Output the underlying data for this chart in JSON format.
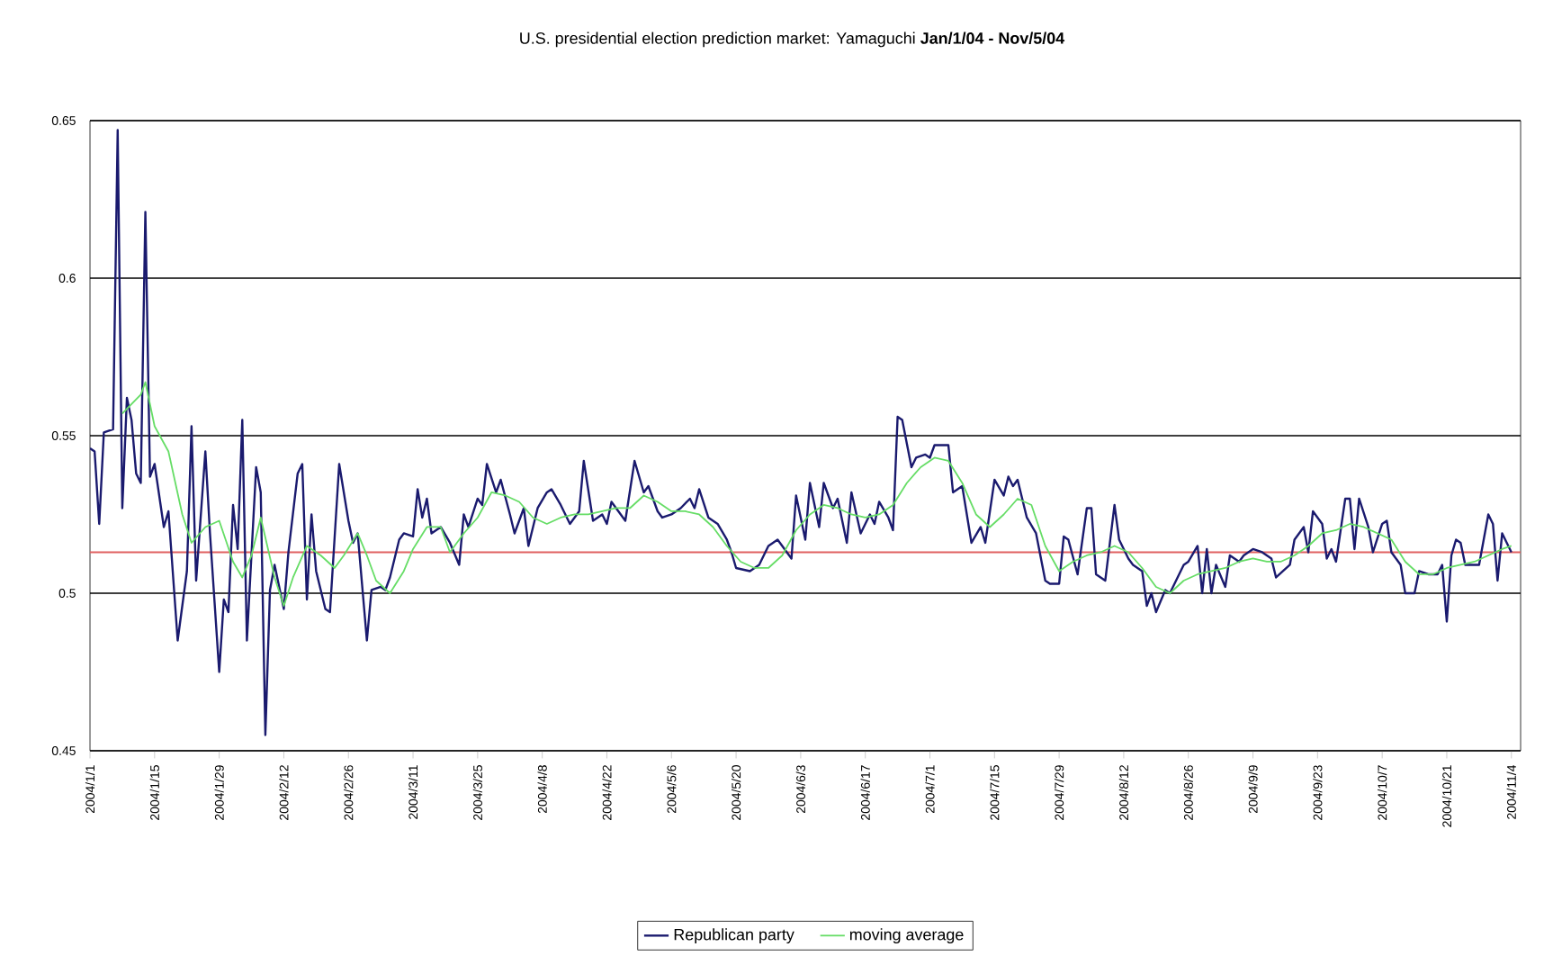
{
  "chart_data": {
    "type": "line",
    "title": "U.S. presidential election prediction market: Yamaguchi   **Jan/1/04 - Nov/5/04**",
    "xlim": [
      "2004-01-01",
      "2004-11-06"
    ],
    "xticks": [
      {
        "value": "2004-01-01",
        "label": "2004/1/1"
      },
      {
        "value": "2004-01-15",
        "label": "2004/1/15"
      },
      {
        "value": "2004-01-29",
        "label": "2004/1/29"
      },
      {
        "value": "2004-02-12",
        "label": "2004/2/12"
      },
      {
        "value": "2004-02-26",
        "label": "2004/2/26"
      },
      {
        "value": "2004-03-11",
        "label": "2004/3/11"
      },
      {
        "value": "2004-03-25",
        "label": "2004/3/25"
      },
      {
        "value": "2004-04-08",
        "label": "2004/4/8"
      },
      {
        "value": "2004-04-22",
        "label": "2004/4/22"
      },
      {
        "value": "2004-05-06",
        "label": "2004/5/6"
      },
      {
        "value": "2004-05-20",
        "label": "2004/5/20"
      },
      {
        "value": "2004-06-03",
        "label": "2004/6/3"
      },
      {
        "value": "2004-06-17",
        "label": "2004/6/17"
      },
      {
        "value": "2004-07-01",
        "label": "2004/7/1"
      },
      {
        "value": "2004-07-15",
        "label": "2004/7/15"
      },
      {
        "value": "2004-07-29",
        "label": "2004/7/29"
      },
      {
        "value": "2004-08-12",
        "label": "2004/8/12"
      },
      {
        "value": "2004-08-26",
        "label": "2004/8/26"
      },
      {
        "value": "2004-09-09",
        "label": "2004/9/9"
      },
      {
        "value": "2004-09-23",
        "label": "2004/9/23"
      },
      {
        "value": "2004-10-07",
        "label": "2004/10/7"
      },
      {
        "value": "2004-10-21",
        "label": "2004/10/21"
      },
      {
        "value": "2004-11-04",
        "label": "2004/11/4"
      }
    ],
    "ylim": [
      0.45,
      0.65
    ],
    "yticks": [
      0.45,
      0.5,
      0.55,
      0.6,
      0.65
    ],
    "grid": "y",
    "legend": "bottom",
    "ref_lines": [
      {
        "axis": "y",
        "value": 0.513,
        "color": "#e06060"
      }
    ],
    "series": [
      {
        "name": "Republican party",
        "color": "#1a1a6e",
        "x": [
          "2004-01-01",
          "2004-01-02",
          "2004-01-03",
          "2004-01-04",
          "2004-01-06",
          "2004-01-07",
          "2004-01-08",
          "2004-01-09",
          "2004-01-10",
          "2004-01-11",
          "2004-01-12",
          "2004-01-13",
          "2004-01-14",
          "2004-01-15",
          "2004-01-17",
          "2004-01-18",
          "2004-01-20",
          "2004-01-22",
          "2004-01-23",
          "2004-01-24",
          "2004-01-26",
          "2004-01-27",
          "2004-01-29",
          "2004-01-30",
          "2004-01-31",
          "2004-02-01",
          "2004-02-02",
          "2004-02-03",
          "2004-02-04",
          "2004-02-06",
          "2004-02-07",
          "2004-02-08",
          "2004-02-09",
          "2004-02-10",
          "2004-02-12",
          "2004-02-13",
          "2004-02-15",
          "2004-02-16",
          "2004-02-17",
          "2004-02-18",
          "2004-02-19",
          "2004-02-21",
          "2004-02-22",
          "2004-02-24",
          "2004-02-26",
          "2004-02-27",
          "2004-02-28",
          "2004-03-01",
          "2004-03-02",
          "2004-03-04",
          "2004-03-05",
          "2004-03-06",
          "2004-03-08",
          "2004-03-09",
          "2004-03-11",
          "2004-03-12",
          "2004-03-13",
          "2004-03-14",
          "2004-03-15",
          "2004-03-17",
          "2004-03-19",
          "2004-03-21",
          "2004-03-22",
          "2004-03-23",
          "2004-03-25",
          "2004-03-26",
          "2004-03-27",
          "2004-03-29",
          "2004-03-30",
          "2004-04-01",
          "2004-04-02",
          "2004-04-04",
          "2004-04-05",
          "2004-04-07",
          "2004-04-09",
          "2004-04-10",
          "2004-04-12",
          "2004-04-14",
          "2004-04-16",
          "2004-04-17",
          "2004-04-19",
          "2004-04-21",
          "2004-04-22",
          "2004-04-23",
          "2004-04-26",
          "2004-04-28",
          "2004-04-30",
          "2004-05-01",
          "2004-05-03",
          "2004-05-04",
          "2004-05-06",
          "2004-05-08",
          "2004-05-10",
          "2004-05-11",
          "2004-05-12",
          "2004-05-14",
          "2004-05-16",
          "2004-05-18",
          "2004-05-19",
          "2004-05-20",
          "2004-05-23",
          "2004-05-25",
          "2004-05-27",
          "2004-05-29",
          "2004-06-01",
          "2004-06-02",
          "2004-06-04",
          "2004-06-05",
          "2004-06-07",
          "2004-06-08",
          "2004-06-10",
          "2004-06-11",
          "2004-06-13",
          "2004-06-14",
          "2004-06-16",
          "2004-06-18",
          "2004-06-19",
          "2004-06-20",
          "2004-06-22",
          "2004-06-23",
          "2004-06-24",
          "2004-06-25",
          "2004-06-27",
          "2004-06-28",
          "2004-06-30",
          "2004-07-01",
          "2004-07-02",
          "2004-07-05",
          "2004-07-06",
          "2004-07-08",
          "2004-07-10",
          "2004-07-12",
          "2004-07-13",
          "2004-07-15",
          "2004-07-17",
          "2004-07-18",
          "2004-07-19",
          "2004-07-20",
          "2004-07-22",
          "2004-07-24",
          "2004-07-26",
          "2004-07-27",
          "2004-07-29",
          "2004-07-30",
          "2004-07-31",
          "2004-08-02",
          "2004-08-04",
          "2004-08-05",
          "2004-08-06",
          "2004-08-08",
          "2004-08-10",
          "2004-08-11",
          "2004-08-13",
          "2004-08-14",
          "2004-08-16",
          "2004-08-17",
          "2004-08-18",
          "2004-08-19",
          "2004-08-21",
          "2004-08-22",
          "2004-08-25",
          "2004-08-26",
          "2004-08-28",
          "2004-08-29",
          "2004-08-30",
          "2004-08-31",
          "2004-09-01",
          "2004-09-03",
          "2004-09-04",
          "2004-09-06",
          "2004-09-07",
          "2004-09-09",
          "2004-09-11",
          "2004-09-13",
          "2004-09-14",
          "2004-09-17",
          "2004-09-18",
          "2004-09-20",
          "2004-09-21",
          "2004-09-22",
          "2004-09-24",
          "2004-09-25",
          "2004-09-26",
          "2004-09-27",
          "2004-09-29",
          "2004-09-30",
          "2004-10-01",
          "2004-10-02",
          "2004-10-04",
          "2004-10-05",
          "2004-10-07",
          "2004-10-08",
          "2004-10-09",
          "2004-10-11",
          "2004-10-12",
          "2004-10-14",
          "2004-10-15",
          "2004-10-17",
          "2004-10-19",
          "2004-10-20",
          "2004-10-21",
          "2004-10-22",
          "2004-10-23",
          "2004-10-24",
          "2004-10-25",
          "2004-10-27",
          "2004-10-28",
          "2004-10-30",
          "2004-10-31",
          "2004-11-01",
          "2004-11-02",
          "2004-11-03",
          "2004-11-04"
        ],
        "values": [
          0.546,
          0.545,
          0.522,
          0.551,
          0.552,
          0.647,
          0.527,
          0.562,
          0.555,
          0.538,
          0.535,
          0.621,
          0.537,
          0.541,
          0.521,
          0.526,
          0.485,
          0.507,
          0.553,
          0.504,
          0.545,
          0.519,
          0.475,
          0.498,
          0.494,
          0.528,
          0.514,
          0.555,
          0.485,
          0.54,
          0.532,
          0.455,
          0.501,
          0.509,
          0.495,
          0.513,
          0.538,
          0.541,
          0.498,
          0.525,
          0.507,
          0.495,
          0.494,
          0.541,
          0.523,
          0.516,
          0.519,
          0.485,
          0.501,
          0.502,
          0.501,
          0.505,
          0.517,
          0.519,
          0.518,
          0.533,
          0.524,
          0.53,
          0.519,
          0.521,
          0.516,
          0.509,
          0.525,
          0.521,
          0.53,
          0.528,
          0.541,
          0.532,
          0.536,
          0.525,
          0.519,
          0.527,
          0.515,
          0.527,
          0.532,
          0.533,
          0.528,
          0.522,
          0.526,
          0.542,
          0.523,
          0.525,
          0.522,
          0.529,
          0.523,
          0.542,
          0.532,
          0.534,
          0.526,
          0.524,
          0.525,
          0.527,
          0.53,
          0.527,
          0.533,
          0.524,
          0.522,
          0.517,
          0.513,
          0.508,
          0.507,
          0.509,
          0.515,
          0.517,
          0.511,
          0.531,
          0.517,
          0.535,
          0.521,
          0.535,
          0.527,
          0.53,
          0.516,
          0.532,
          0.519,
          0.525,
          0.522,
          0.529,
          0.524,
          0.52,
          0.556,
          0.555,
          0.54,
          0.543,
          0.544,
          0.543,
          0.547,
          0.547,
          0.532,
          0.534,
          0.516,
          0.521,
          0.516,
          0.536,
          0.531,
          0.537,
          0.534,
          0.536,
          0.524,
          0.519,
          0.504,
          0.503,
          0.503,
          0.518,
          0.517,
          0.506,
          0.527,
          0.527,
          0.506,
          0.504,
          0.528,
          0.517,
          0.511,
          0.509,
          0.507,
          0.496,
          0.5,
          0.494,
          0.501,
          0.5,
          0.509,
          0.51,
          0.515,
          0.5,
          0.514,
          0.5,
          0.509,
          0.502,
          0.512,
          0.51,
          0.512,
          0.514,
          0.513,
          0.511,
          0.505,
          0.509,
          0.517,
          0.521,
          0.513,
          0.526,
          0.522,
          0.511,
          0.514,
          0.51,
          0.53,
          0.53,
          0.514,
          0.53,
          0.521,
          0.513,
          0.522,
          0.523,
          0.513,
          0.509,
          0.5,
          0.5,
          0.507,
          0.506,
          0.506,
          0.509,
          0.491,
          0.512,
          0.517,
          0.516,
          0.509,
          0.509,
          0.509,
          0.525,
          0.522,
          0.504,
          0.519,
          0.516,
          0.513
        ]
      },
      {
        "name": "moving average",
        "color": "#66dd66",
        "x": [
          "2004-01-08",
          "2004-01-12",
          "2004-01-13",
          "2004-01-15",
          "2004-01-18",
          "2004-01-21",
          "2004-01-23",
          "2004-01-26",
          "2004-01-29",
          "2004-02-01",
          "2004-02-03",
          "2004-02-05",
          "2004-02-07",
          "2004-02-10",
          "2004-02-12",
          "2004-02-14",
          "2004-02-17",
          "2004-02-20",
          "2004-02-23",
          "2004-02-25",
          "2004-02-28",
          "2004-03-01",
          "2004-03-03",
          "2004-03-06",
          "2004-03-09",
          "2004-03-11",
          "2004-03-14",
          "2004-03-17",
          "2004-03-19",
          "2004-03-22",
          "2004-03-25",
          "2004-03-28",
          "2004-03-31",
          "2004-04-03",
          "2004-04-06",
          "2004-04-09",
          "2004-04-12",
          "2004-04-15",
          "2004-04-18",
          "2004-04-21",
          "2004-04-24",
          "2004-04-27",
          "2004-04-30",
          "2004-05-03",
          "2004-05-06",
          "2004-05-09",
          "2004-05-12",
          "2004-05-15",
          "2004-05-18",
          "2004-05-21",
          "2004-05-24",
          "2004-05-27",
          "2004-05-30",
          "2004-06-02",
          "2004-06-05",
          "2004-06-08",
          "2004-06-11",
          "2004-06-14",
          "2004-06-17",
          "2004-06-20",
          "2004-06-23",
          "2004-06-26",
          "2004-06-29",
          "2004-07-02",
          "2004-07-05",
          "2004-07-08",
          "2004-07-11",
          "2004-07-14",
          "2004-07-17",
          "2004-07-20",
          "2004-07-23",
          "2004-07-26",
          "2004-07-29",
          "2004-08-01",
          "2004-08-04",
          "2004-08-07",
          "2004-08-10",
          "2004-08-13",
          "2004-08-16",
          "2004-08-19",
          "2004-08-22",
          "2004-08-25",
          "2004-08-28",
          "2004-08-31",
          "2004-09-03",
          "2004-09-06",
          "2004-09-09",
          "2004-09-12",
          "2004-09-15",
          "2004-09-18",
          "2004-09-21",
          "2004-09-24",
          "2004-09-27",
          "2004-09-30",
          "2004-10-03",
          "2004-10-06",
          "2004-10-09",
          "2004-10-12",
          "2004-10-15",
          "2004-10-18",
          "2004-10-21",
          "2004-10-24",
          "2004-10-27",
          "2004-10-30",
          "2004-11-02",
          "2004-11-04"
        ],
        "values": [
          0.557,
          0.563,
          0.567,
          0.553,
          0.545,
          0.525,
          0.516,
          0.521,
          0.523,
          0.51,
          0.505,
          0.512,
          0.524,
          0.505,
          0.496,
          0.505,
          0.515,
          0.512,
          0.508,
          0.512,
          0.519,
          0.512,
          0.504,
          0.5,
          0.507,
          0.514,
          0.521,
          0.521,
          0.513,
          0.519,
          0.524,
          0.532,
          0.531,
          0.529,
          0.524,
          0.522,
          0.524,
          0.525,
          0.525,
          0.526,
          0.527,
          0.527,
          0.531,
          0.529,
          0.526,
          0.526,
          0.525,
          0.521,
          0.515,
          0.51,
          0.508,
          0.508,
          0.512,
          0.52,
          0.525,
          0.528,
          0.527,
          0.525,
          0.524,
          0.525,
          0.528,
          0.535,
          0.54,
          0.543,
          0.542,
          0.535,
          0.525,
          0.521,
          0.525,
          0.53,
          0.528,
          0.515,
          0.507,
          0.51,
          0.512,
          0.513,
          0.515,
          0.513,
          0.508,
          0.502,
          0.5,
          0.504,
          0.506,
          0.507,
          0.508,
          0.51,
          0.511,
          0.51,
          0.51,
          0.512,
          0.515,
          0.519,
          0.52,
          0.522,
          0.521,
          0.519,
          0.517,
          0.51,
          0.506,
          0.506,
          0.508,
          0.509,
          0.51,
          0.512,
          0.514,
          0.515
        ]
      }
    ]
  }
}
